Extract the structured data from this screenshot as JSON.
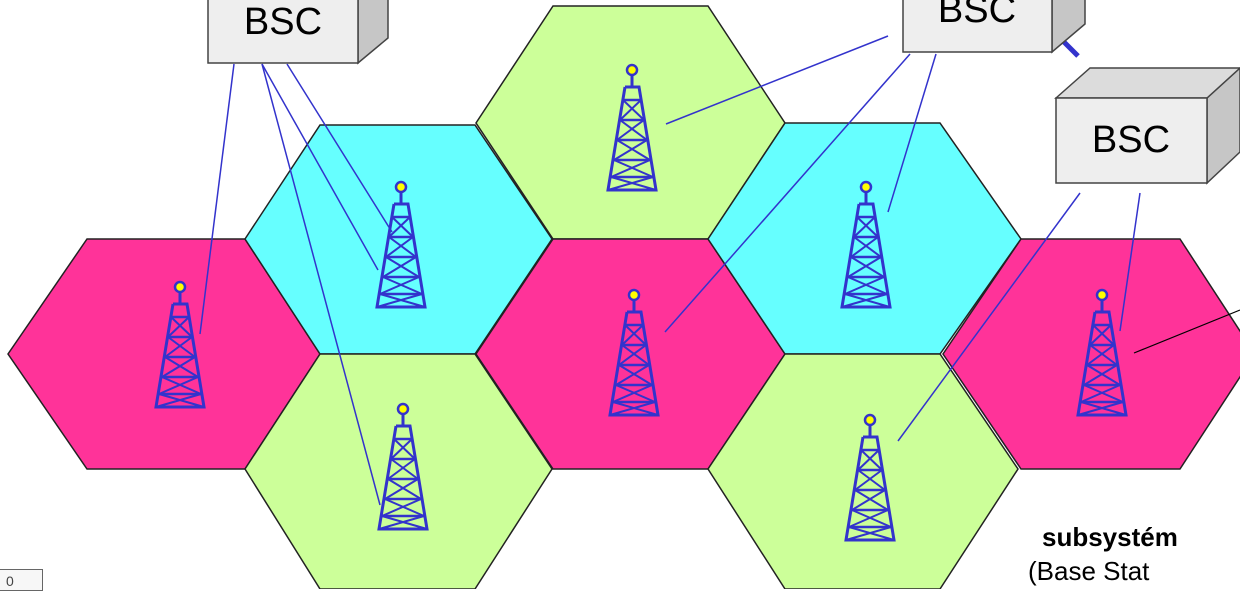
{
  "diagram": {
    "bsc_units": [
      {
        "label": "BSC"
      },
      {
        "label": "BSC"
      },
      {
        "label": "BSC"
      }
    ],
    "caption": {
      "title": "subsystém",
      "subtitle": "(Base  Stat"
    },
    "page_number": "0",
    "colors": {
      "cell_magenta": "#ff3399",
      "cell_cyan": "#66ffff",
      "cell_green": "#ccff99",
      "tower": "#3333cc",
      "tower_tip": "#ffff00",
      "link_line": "#3333cc",
      "bsc_front": "#eeeeee",
      "bsc_side": "#c6c6c6"
    },
    "cells": [
      {
        "color": "cell_magenta",
        "tower": "tower-west"
      },
      {
        "color": "cell_cyan",
        "tower": "tower-northwest"
      },
      {
        "color": "cell_green",
        "tower": "tower-southwest"
      },
      {
        "color": "cell_green",
        "tower": "tower-north"
      },
      {
        "color": "cell_magenta",
        "tower": "tower-center"
      },
      {
        "color": "cell_cyan",
        "tower": "tower-northeast"
      },
      {
        "color": "cell_green",
        "tower": "tower-southeast"
      },
      {
        "color": "cell_magenta",
        "tower": "tower-east"
      }
    ]
  }
}
